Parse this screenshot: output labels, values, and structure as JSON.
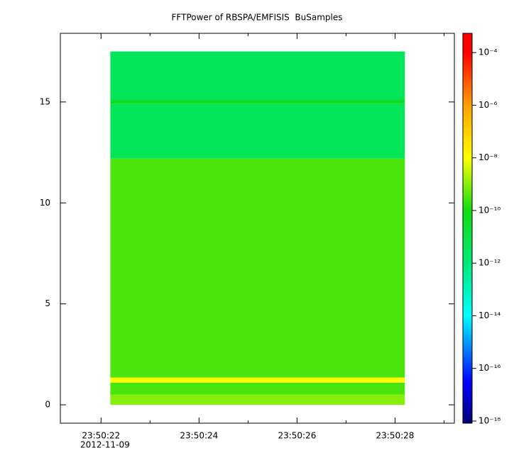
{
  "chart_data": {
    "type": "spectrogram",
    "title": "FFTPower of RBSPA/EMFISIS  BuSamples",
    "x_date_label": "2012-11-09",
    "xlim": [
      21.17,
      29.21
    ],
    "xticks": [
      {
        "value": 22,
        "label": "23:50:22"
      },
      {
        "value": 24,
        "label": "23:50:24"
      },
      {
        "value": 26,
        "label": "23:50:26"
      },
      {
        "value": 28,
        "label": "23:50:28"
      }
    ],
    "xminorticks": [
      23,
      25,
      27,
      29
    ],
    "ylim": [
      -0.91,
      18.4
    ],
    "yticks": [
      0,
      5,
      10,
      15
    ],
    "time_range": [
      22.19,
      28.2
    ],
    "freq_bins": [
      0,
      0.5,
      1.1,
      1.35,
      12.2,
      14.9,
      15.1,
      17.5
    ],
    "z": [
      1e-09,
      3e-10,
      1e-08,
      3e-10,
      4e-12,
      4e-11,
      4e-12
    ],
    "log_z": true,
    "zlim": [
      8.3e-19,
      0.00054
    ],
    "zticks": [
      {
        "value": 0.0001,
        "label": "10⁻⁴"
      },
      {
        "value": 1e-06,
        "label": "10⁻⁶"
      },
      {
        "value": 1e-08,
        "label": "10⁻⁸"
      },
      {
        "value": 1e-10,
        "label": "10⁻¹⁰"
      },
      {
        "value": 1e-12,
        "label": "10⁻¹²"
      },
      {
        "value": 1e-14,
        "label": "10⁻¹⁴"
      },
      {
        "value": 1e-16,
        "label": "10⁻¹⁶"
      },
      {
        "value": 1e-18,
        "label": "10⁻¹⁸"
      }
    ],
    "colormap": [
      [
        1e-18,
        "#000080"
      ],
      [
        3e-17,
        "#0000ff"
      ],
      [
        1e-14,
        "#00ffff"
      ],
      [
        1e-12,
        "#00e878"
      ],
      [
        1e-10,
        "#11dd11"
      ],
      [
        1e-08,
        "#ffff00"
      ],
      [
        1e-06,
        "#ffa000"
      ],
      [
        0.0001,
        "#ff0000"
      ],
      [
        0.00054,
        "#ff0000"
      ]
    ]
  }
}
